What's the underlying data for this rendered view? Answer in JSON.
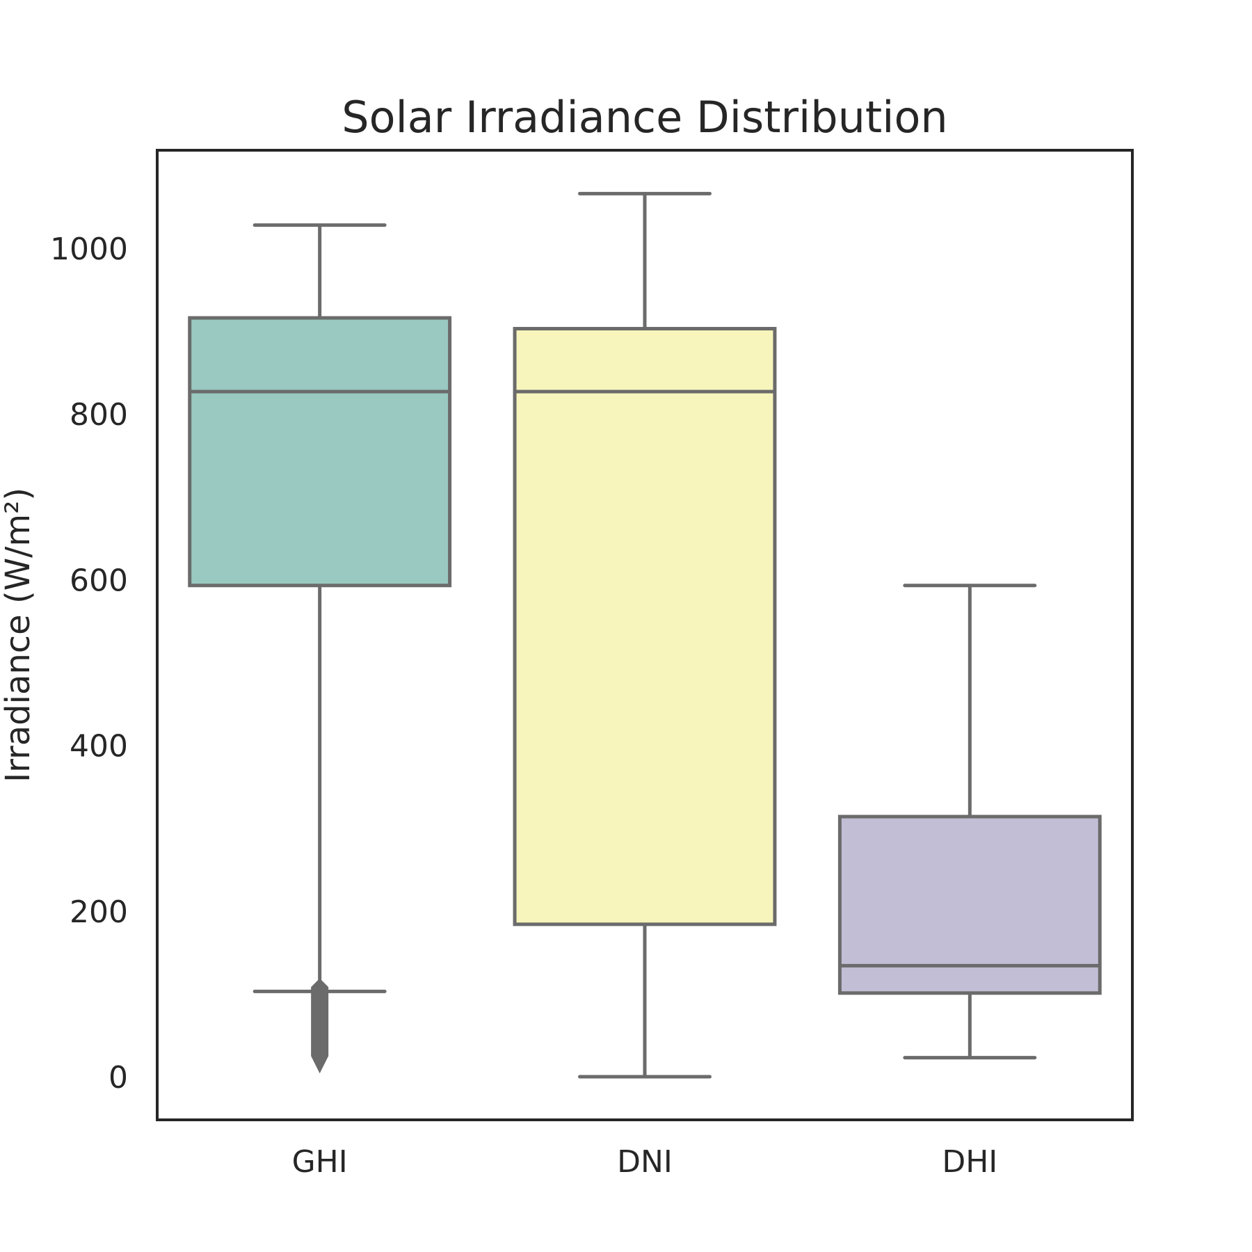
{
  "chart_data": {
    "type": "box",
    "title": "Solar Irradiance Distribution",
    "xlabel": "",
    "ylabel": "Irradiance (W/m²)",
    "ylim": [
      -55,
      1115
    ],
    "yticks": [
      0,
      200,
      400,
      600,
      800,
      1000
    ],
    "grid": false,
    "categories": [
      "GHI",
      "DNI",
      "DHI"
    ],
    "boxes": [
      {
        "category": "GHI",
        "whisker_low": 103,
        "q1": 593,
        "median": 827,
        "q3": 916,
        "whisker_high": 1028,
        "outliers_range": [
          15,
          108
        ],
        "color": "#99c9c0"
      },
      {
        "category": "DNI",
        "whisker_low": 0,
        "q1": 184,
        "median": 827,
        "q3": 903,
        "whisker_high": 1066,
        "outliers_range": null,
        "color": "#f7f5bb"
      },
      {
        "category": "DHI",
        "whisker_low": 23,
        "q1": 101,
        "median": 134,
        "q3": 314,
        "whisker_high": 593,
        "outliers_range": null,
        "color": "#c2bed5"
      }
    ],
    "colors": {
      "line": "#6b6b6b",
      "axes": "#262626",
      "text": "#262626"
    }
  }
}
